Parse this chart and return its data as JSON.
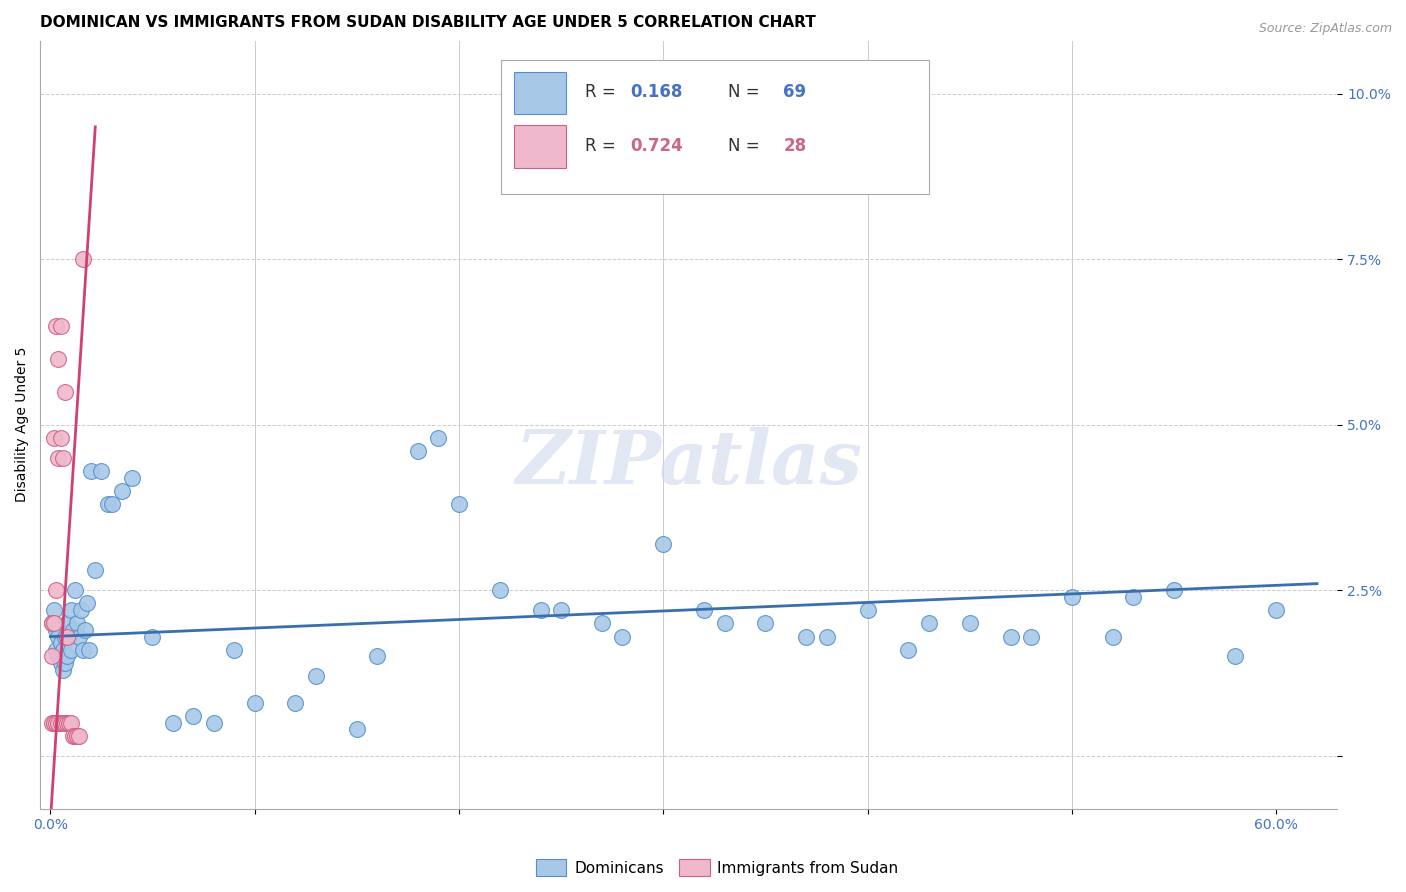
{
  "title": "DOMINICAN VS IMMIGRANTS FROM SUDAN DISABILITY AGE UNDER 5 CORRELATION CHART",
  "source": "Source: ZipAtlas.com",
  "ylabel": "Disability Age Under 5",
  "watermark": "ZIPatlas",
  "legend_label_blue": "Dominicans",
  "legend_label_pink": "Immigrants from Sudan",
  "xlim": [
    -0.005,
    0.63
  ],
  "ylim": [
    -0.008,
    0.108
  ],
  "color_blue": "#a8c8e8",
  "color_blue_edge": "#5590cc",
  "color_blue_line": "#3a6fad",
  "color_pink": "#f0b8cc",
  "color_pink_edge": "#d06080",
  "color_pink_line": "#d04070",
  "color_text_blue": "#4472c4",
  "color_text_pink": "#cc6688",
  "color_text_dark": "#333333",
  "color_grid": "#cccccc",
  "title_fontsize": 11,
  "axis_fontsize": 10,
  "tick_fontsize": 10,
  "blue_scatter_x": [
    0.001,
    0.002,
    0.003,
    0.003,
    0.004,
    0.004,
    0.005,
    0.005,
    0.006,
    0.006,
    0.007,
    0.007,
    0.008,
    0.008,
    0.009,
    0.01,
    0.01,
    0.011,
    0.012,
    0.013,
    0.014,
    0.015,
    0.016,
    0.017,
    0.018,
    0.019,
    0.02,
    0.022,
    0.025,
    0.028,
    0.03,
    0.035,
    0.04,
    0.05,
    0.06,
    0.07,
    0.08,
    0.09,
    0.1,
    0.12,
    0.15,
    0.18,
    0.2,
    0.22,
    0.25,
    0.28,
    0.3,
    0.32,
    0.35,
    0.38,
    0.4,
    0.42,
    0.45,
    0.48,
    0.5,
    0.52,
    0.55,
    0.58,
    0.6,
    0.13,
    0.16,
    0.19,
    0.24,
    0.27,
    0.33,
    0.37,
    0.43,
    0.47,
    0.53
  ],
  "blue_scatter_y": [
    0.02,
    0.022,
    0.019,
    0.016,
    0.018,
    0.015,
    0.017,
    0.014,
    0.016,
    0.013,
    0.018,
    0.014,
    0.02,
    0.015,
    0.018,
    0.022,
    0.016,
    0.019,
    0.025,
    0.02,
    0.018,
    0.022,
    0.016,
    0.019,
    0.023,
    0.016,
    0.043,
    0.028,
    0.043,
    0.038,
    0.038,
    0.04,
    0.042,
    0.018,
    0.005,
    0.006,
    0.005,
    0.016,
    0.008,
    0.008,
    0.004,
    0.046,
    0.038,
    0.025,
    0.022,
    0.018,
    0.032,
    0.022,
    0.02,
    0.018,
    0.022,
    0.016,
    0.02,
    0.018,
    0.024,
    0.018,
    0.025,
    0.015,
    0.022,
    0.012,
    0.015,
    0.048,
    0.022,
    0.02,
    0.02,
    0.018,
    0.02,
    0.018,
    0.024
  ],
  "pink_scatter_x": [
    0.001,
    0.001,
    0.001,
    0.002,
    0.002,
    0.002,
    0.003,
    0.003,
    0.003,
    0.004,
    0.004,
    0.004,
    0.005,
    0.005,
    0.005,
    0.006,
    0.006,
    0.007,
    0.007,
    0.008,
    0.008,
    0.009,
    0.01,
    0.011,
    0.012,
    0.013,
    0.014,
    0.016
  ],
  "pink_scatter_y": [
    0.02,
    0.015,
    0.005,
    0.048,
    0.02,
    0.005,
    0.065,
    0.025,
    0.005,
    0.06,
    0.045,
    0.005,
    0.065,
    0.048,
    0.005,
    0.045,
    0.005,
    0.055,
    0.005,
    0.018,
    0.005,
    0.005,
    0.005,
    0.003,
    0.003,
    0.003,
    0.003,
    0.075
  ],
  "blue_line_x": [
    0.0,
    0.62
  ],
  "blue_line_y": [
    0.018,
    0.026
  ],
  "pink_line_x": [
    0.0,
    0.022
  ],
  "pink_line_y": [
    -0.01,
    0.095
  ]
}
